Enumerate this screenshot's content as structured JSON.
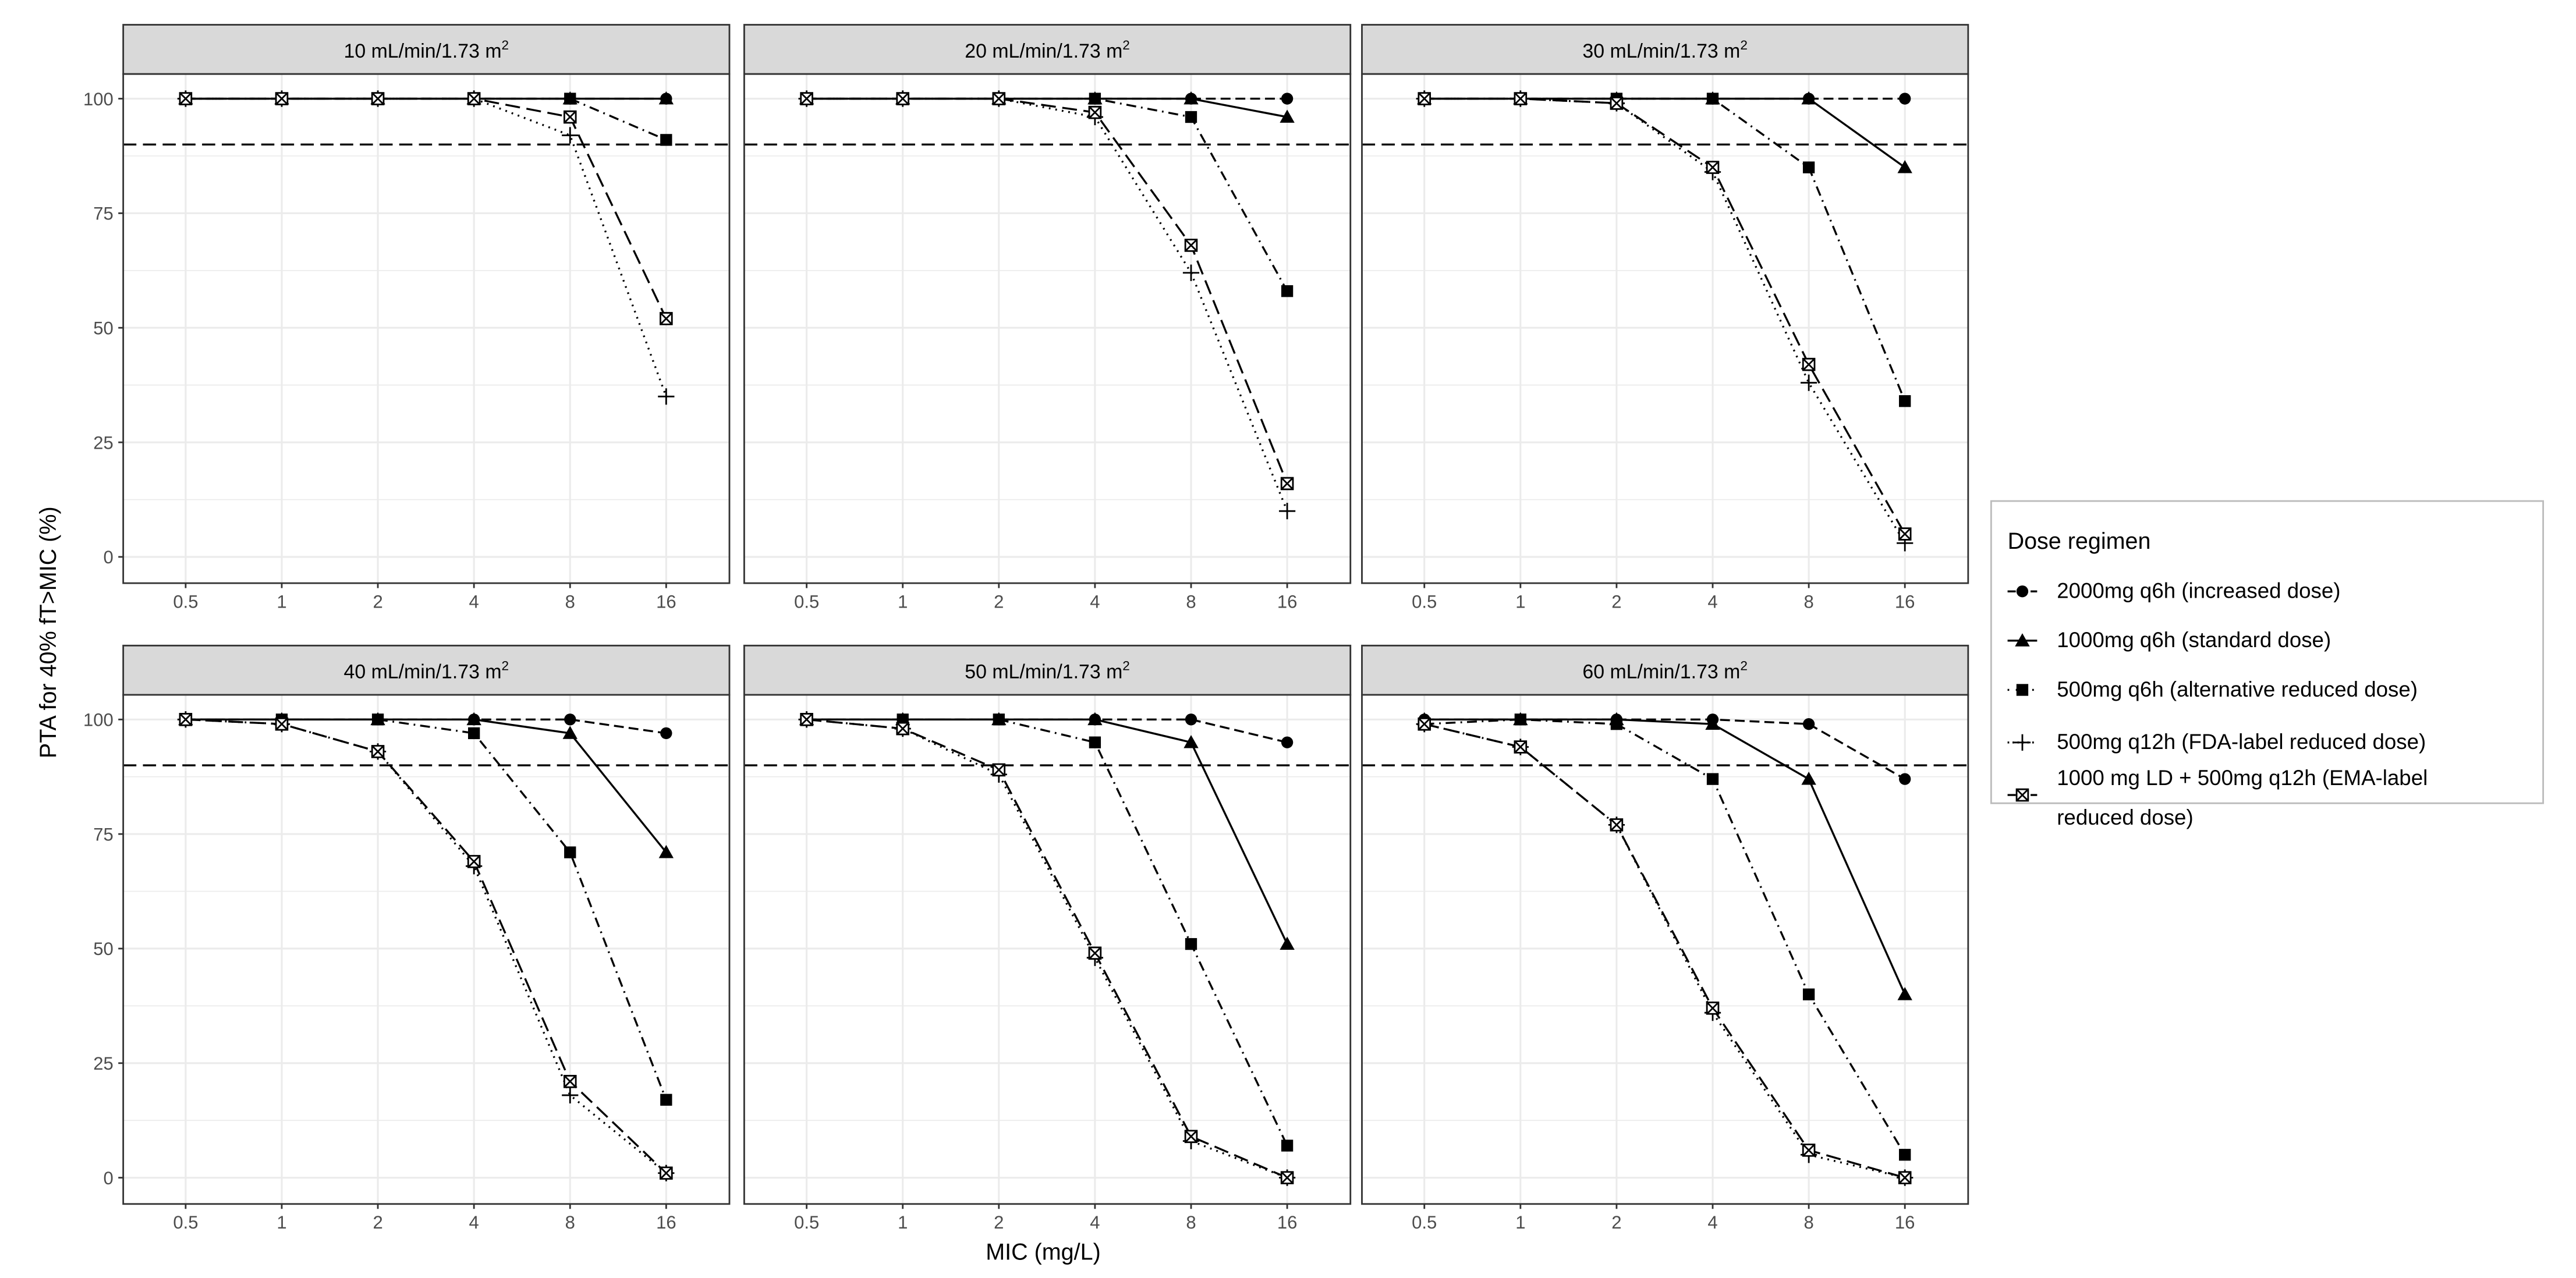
{
  "chart_data": {
    "type": "line",
    "ylabel": "PTA for 40% fT>MIC (%)",
    "xlabel": "MIC (mg/L)",
    "categories": [
      "0.5",
      "1",
      "2",
      "4",
      "8",
      "16"
    ],
    "y_ticks": [
      "0",
      "25",
      "50",
      "75",
      "100"
    ],
    "ylim": [
      -5,
      105
    ],
    "grid": true,
    "threshold": 90,
    "legend": {
      "title": "Dose regimen",
      "placement": "right",
      "entries": [
        "2000mg q6h (increased dose)",
        "1000mg q6h (standard dose)",
        "500mg q6h (alternative reduced dose)",
        "500mg q12h (FDA-label reduced dose)",
        "1000 mg LD + 500mg q12h (EMA-label reduced dose)"
      ],
      "entry_lines": [
        [
          "2000mg q6h (increased dose)"
        ],
        [
          "1000mg q6h (standard dose)"
        ],
        [
          "500mg q6h (alternative reduced dose)"
        ],
        [
          "500mg q12h (FDA-label reduced dose)"
        ],
        [
          "1000 mg LD + 500mg q12h (EMA-label",
          "reduced dose)"
        ]
      ]
    },
    "series_styles": [
      {
        "marker": "circle",
        "line": "dashed"
      },
      {
        "marker": "triangle",
        "line": "solid"
      },
      {
        "marker": "square",
        "line": "dotdash"
      },
      {
        "marker": "plus",
        "line": "dotted"
      },
      {
        "marker": "boxed-x",
        "line": "longdash"
      }
    ],
    "panels": [
      {
        "title": "10 mL/min/1.73 m",
        "sup": "2",
        "series": [
          {
            "name": "2000mg q6h (increased dose)",
            "values": [
              100,
              100,
              100,
              100,
              100,
              100
            ]
          },
          {
            "name": "1000mg q6h (standard dose)",
            "values": [
              100,
              100,
              100,
              100,
              100,
              100
            ]
          },
          {
            "name": "500mg q6h (alternative reduced dose)",
            "values": [
              100,
              100,
              100,
              100,
              100,
              91
            ]
          },
          {
            "name": "500mg q12h (FDA-label reduced dose)",
            "values": [
              100,
              100,
              100,
              100,
              92,
              35
            ]
          },
          {
            "name": "1000 mg LD + 500mg q12h (EMA-label reduced dose)",
            "values": [
              100,
              100,
              100,
              100,
              96,
              52
            ]
          }
        ]
      },
      {
        "title": "20 mL/min/1.73 m",
        "sup": "2",
        "series": [
          {
            "name": "2000mg q6h (increased dose)",
            "values": [
              100,
              100,
              100,
              100,
              100,
              100
            ]
          },
          {
            "name": "1000mg q6h (standard dose)",
            "values": [
              100,
              100,
              100,
              100,
              100,
              96
            ]
          },
          {
            "name": "500mg q6h (alternative reduced dose)",
            "values": [
              100,
              100,
              100,
              100,
              96,
              58
            ]
          },
          {
            "name": "500mg q12h (FDA-label reduced dose)",
            "values": [
              100,
              100,
              100,
              96,
              62,
              10
            ]
          },
          {
            "name": "1000 mg LD + 500mg q12h (EMA-label reduced dose)",
            "values": [
              100,
              100,
              100,
              97,
              68,
              16
            ]
          }
        ]
      },
      {
        "title": "30 mL/min/1.73 m",
        "sup": "2",
        "series": [
          {
            "name": "2000mg q6h (increased dose)",
            "values": [
              100,
              100,
              100,
              100,
              100,
              100
            ]
          },
          {
            "name": "1000mg q6h (standard dose)",
            "values": [
              100,
              100,
              100,
              100,
              100,
              85
            ]
          },
          {
            "name": "500mg q6h (alternative reduced dose)",
            "values": [
              100,
              100,
              100,
              100,
              85,
              34
            ]
          },
          {
            "name": "500mg q12h (FDA-label reduced dose)",
            "values": [
              100,
              100,
              99,
              84,
              38,
              3
            ]
          },
          {
            "name": "1000 mg LD + 500mg q12h (EMA-label reduced dose)",
            "values": [
              100,
              100,
              99,
              85,
              42,
              5
            ]
          }
        ]
      },
      {
        "title": "40 mL/min/1.73 m",
        "sup": "2",
        "series": [
          {
            "name": "2000mg q6h (increased dose)",
            "values": [
              100,
              100,
              100,
              100,
              100,
              97
            ]
          },
          {
            "name": "1000mg q6h (standard dose)",
            "values": [
              100,
              100,
              100,
              100,
              97,
              71
            ]
          },
          {
            "name": "500mg q6h (alternative reduced dose)",
            "values": [
              100,
              100,
              100,
              97,
              71,
              17
            ]
          },
          {
            "name": "500mg q12h (FDA-label reduced dose)",
            "values": [
              100,
              99,
              93,
              68,
              18,
              1
            ]
          },
          {
            "name": "1000 mg LD + 500mg q12h (EMA-label reduced dose)",
            "values": [
              100,
              99,
              93,
              69,
              21,
              1
            ]
          }
        ]
      },
      {
        "title": "50 mL/min/1.73 m",
        "sup": "2",
        "series": [
          {
            "name": "2000mg q6h (increased dose)",
            "values": [
              100,
              100,
              100,
              100,
              100,
              95
            ]
          },
          {
            "name": "1000mg q6h (standard dose)",
            "values": [
              100,
              100,
              100,
              100,
              95,
              51
            ]
          },
          {
            "name": "500mg q6h (alternative reduced dose)",
            "values": [
              100,
              100,
              100,
              95,
              51,
              7
            ]
          },
          {
            "name": "500mg q12h (FDA-label reduced dose)",
            "values": [
              100,
              98,
              88,
              48,
              8,
              0
            ]
          },
          {
            "name": "1000 mg LD + 500mg q12h (EMA-label reduced dose)",
            "values": [
              100,
              98,
              89,
              49,
              9,
              0
            ]
          }
        ]
      },
      {
        "title": "60 mL/min/1.73 m",
        "sup": "2",
        "series": [
          {
            "name": "2000mg q6h (increased dose)",
            "values": [
              100,
              100,
              100,
              100,
              99,
              87
            ]
          },
          {
            "name": "1000mg q6h (standard dose)",
            "values": [
              100,
              100,
              100,
              99,
              87,
              40
            ]
          },
          {
            "name": "500mg q6h (alternative reduced dose)",
            "values": [
              99,
              100,
              99,
              87,
              40,
              5
            ]
          },
          {
            "name": "500mg q12h (FDA-label reduced dose)",
            "values": [
              99,
              94,
              77,
              36,
              5,
              0
            ]
          },
          {
            "name": "1000 mg LD + 500mg q12h (EMA-label reduced dose)",
            "values": [
              99,
              94,
              77,
              37,
              6,
              0
            ]
          }
        ]
      }
    ],
    "colors": {
      "strip": "#d9d9d9",
      "grid": "#ebebeb",
      "ink": "#000000",
      "frame": "#333333"
    }
  }
}
